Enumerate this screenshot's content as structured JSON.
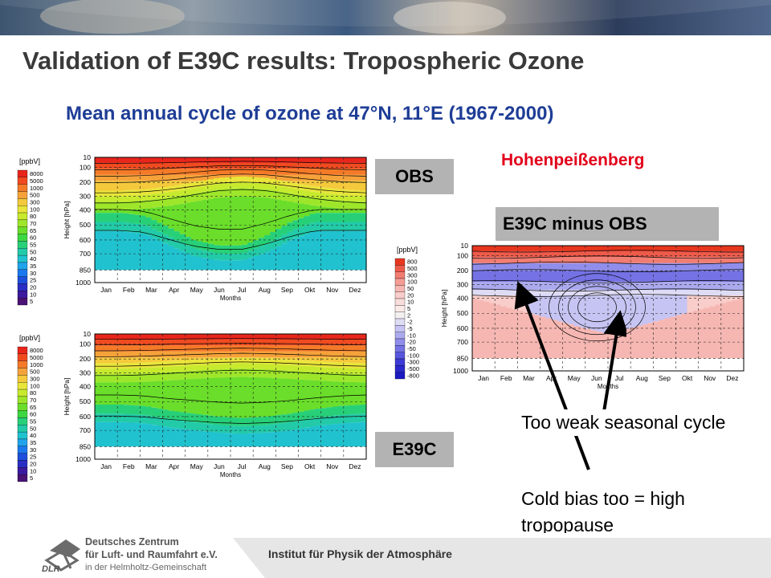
{
  "slide": {
    "title": "Validation of E39C results: Tropospheric Ozone",
    "subtitle": "Mean annual cycle of ozone at 47°N, 11°E (1967-2000)",
    "station": "Hohenpeißenberg",
    "tags": {
      "obs": "OBS",
      "e39c": "E39C",
      "diff": "E39C minus OBS"
    },
    "notes": {
      "note1": "Too weak seasonal cycle",
      "note2": "Cold bias too = high tropopause"
    },
    "colors": {
      "title": "#3a3a3a",
      "subtitle": "#1e3d96",
      "station": "#e2001a",
      "tag": "#b3b3b3"
    }
  },
  "footer": {
    "institute": "Institut für Physik der Atmosphäre",
    "logo_line1": "Deutsches Zentrum",
    "logo_line2": "für Luft- und Raumfahrt e.V.",
    "logo_line3": "in der Helmholtz-Gemeinschaft",
    "logo_abbr": "DLR"
  },
  "chart_data": [
    {
      "type": "heatmap",
      "name": "OBS",
      "unit_label": "[ppbV]",
      "legend_levels": [
        "8000",
        "5000",
        "1000",
        "500",
        "300",
        "100",
        "80",
        "70",
        "65",
        "60",
        "55",
        "50",
        "40",
        "35",
        "30",
        "25",
        "20",
        "10",
        "5"
      ],
      "months": [
        "Jan",
        "Feb",
        "Mar",
        "Apr",
        "May",
        "Jun",
        "Jul",
        "Aug",
        "Sep",
        "Okt",
        "Nov",
        "Dez"
      ],
      "xlabel": "Months",
      "ylabel": "Height [hPa]",
      "pressure_levels": [
        10,
        100,
        200,
        300,
        400,
        500,
        600,
        700,
        850,
        1000
      ],
      "tropopause_hpa": [
        300,
        300,
        290,
        270,
        240,
        210,
        200,
        210,
        240,
        270,
        290,
        300
      ],
      "low_o3_dip_hpa": [
        500,
        500,
        520,
        600,
        680,
        720,
        720,
        650,
        560,
        500,
        500,
        500
      ],
      "colormap": "rainbow",
      "grid": true
    },
    {
      "type": "heatmap",
      "name": "E39C",
      "unit_label": "[ppbV]",
      "legend_levels": [
        "8000",
        "5000",
        "1000",
        "500",
        "300",
        "100",
        "80",
        "70",
        "65",
        "60",
        "55",
        "50",
        "40",
        "35",
        "30",
        "25",
        "20",
        "10",
        "5"
      ],
      "months": [
        "Jan",
        "Feb",
        "Mar",
        "Apr",
        "May",
        "Jun",
        "Jul",
        "Aug",
        "Sep",
        "Okt",
        "Nov",
        "Dez"
      ],
      "xlabel": "Months",
      "ylabel": "Height [hPa]",
      "pressure_levels": [
        10,
        100,
        200,
        300,
        400,
        500,
        600,
        700,
        850,
        1000
      ],
      "tropopause_hpa": [
        270,
        270,
        265,
        255,
        245,
        235,
        230,
        235,
        245,
        255,
        265,
        270
      ],
      "low_o3_dip_hpa": [
        600,
        600,
        610,
        640,
        660,
        680,
        690,
        680,
        660,
        630,
        610,
        600
      ],
      "colormap": "rainbow",
      "grid": true
    },
    {
      "type": "heatmap",
      "name": "E39C minus OBS",
      "unit_label": "[ppbV]",
      "legend_levels": [
        "800",
        "500",
        "300",
        "100",
        "50",
        "20",
        "10",
        "5",
        "2",
        "-2",
        "-5",
        "-10",
        "-20",
        "-50",
        "-100",
        "-300",
        "-500",
        "-800"
      ],
      "months": [
        "Jan",
        "Feb",
        "Mar",
        "Apr",
        "May",
        "Jun",
        "Jul",
        "Aug",
        "Sep",
        "Okt",
        "Nov",
        "Dez"
      ],
      "xlabel": "Months",
      "ylabel": "Height [hPa]",
      "pressure_levels": [
        10,
        100,
        200,
        300,
        400,
        500,
        600,
        700,
        850,
        1000
      ],
      "negative_region_center": [
        "Jun",
        420
      ],
      "colormap": "red-blue diverging",
      "grid": true
    }
  ]
}
